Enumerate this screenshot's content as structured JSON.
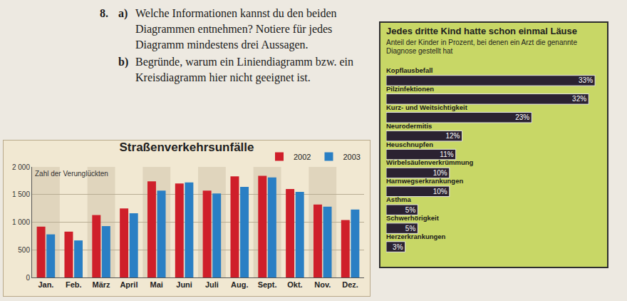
{
  "task": {
    "number": "8.",
    "items": [
      {
        "label": "a)",
        "text": "Welche Informationen kannst du den beiden Diagrammen entnehmen? Notiere für jedes Diagramm mindestens drei Aussagen."
      },
      {
        "label": "b)",
        "text": "Begründe, warum ein Liniendiagramm bzw. ein Kreisdiagramm hier nicht geeignet ist."
      }
    ]
  },
  "chart_data": [
    {
      "type": "bar",
      "title": "Straßenverkehrsunfälle",
      "ylabel": "Zahl der Verunglückten",
      "categories": [
        "Jan.",
        "Feb.",
        "März",
        "April",
        "Mai",
        "Juni",
        "Juli",
        "Aug.",
        "Sept.",
        "Okt.",
        "Nov.",
        "Dez."
      ],
      "series": [
        {
          "name": "2002",
          "color": "#cf1f2a",
          "values": [
            920,
            830,
            1130,
            1250,
            1740,
            1700,
            1570,
            1830,
            1840,
            1600,
            1320,
            1040
          ]
        },
        {
          "name": "2003",
          "color": "#2a7fc4",
          "values": [
            780,
            670,
            930,
            1160,
            1570,
            1720,
            1520,
            1640,
            1810,
            1550,
            1280,
            1230
          ]
        }
      ],
      "ylim": [
        0,
        2000
      ],
      "yticks": [
        0,
        500,
        {
          "value": 1000,
          "label": "1 000"
        },
        {
          "value": 1500,
          "label": "1 500"
        },
        {
          "value": 2000,
          "label": "2 000"
        }
      ],
      "grid": true,
      "legend": "top right"
    },
    {
      "type": "bar",
      "orientation": "horizontal",
      "title": "Jedes dritte Kind hatte schon einmal Läuse",
      "subtitle": "Anteil der Kinder in Prozent, bei denen ein Arzt die genannte Diagnose gestellt hat",
      "categories": [
        "Kopflausbefall",
        "Pilzinfektionen",
        "Kurz- und Weitsichtigkeit",
        "Neurodermitis",
        "Heuschnupfen",
        "Wirbelsäulenverkrümmung",
        "Harnwegserkrankungen",
        "Asthma",
        "Schwerhörigkeit",
        "Herzerkrankungen"
      ],
      "values": [
        33,
        32,
        23,
        12,
        11,
        10,
        10,
        5,
        5,
        3
      ],
      "value_labels": [
        "33%",
        "32%",
        "23%",
        "12%",
        "11%",
        "10%",
        "10%",
        "5%",
        "5%",
        "3%"
      ],
      "color": "#2b2231",
      "xlim": [
        0,
        34
      ],
      "tick_labels": false,
      "data_labels": true
    }
  ]
}
